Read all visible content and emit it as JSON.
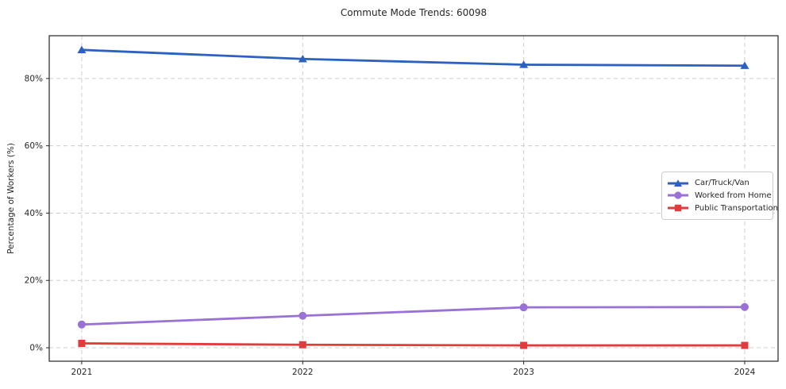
{
  "chart_data": {
    "type": "line",
    "title": "Commute Mode Trends: 60098",
    "xlabel": "",
    "ylabel": "Percentage of Workers (%)",
    "x": [
      2021,
      2022,
      2023,
      2024
    ],
    "x_tick_labels": [
      "2021",
      "2022",
      "2023",
      "2024"
    ],
    "y_ticks": [
      0,
      20,
      40,
      60,
      80
    ],
    "y_tick_labels": [
      "0%",
      "20%",
      "40%",
      "60%",
      "80%"
    ],
    "xlim_index": [
      -0.147,
      3.151
    ],
    "ylim": [
      -4,
      92.7
    ],
    "grid": true,
    "grid_style": "dashed",
    "legend_position": "center right",
    "series": [
      {
        "name": "Car/Truck/Van",
        "color": "#2d61c1",
        "marker": "triangle",
        "values": [
          88.5,
          85.8,
          84.1,
          83.8
        ]
      },
      {
        "name": "Worked from Home",
        "color": "#9a71d4",
        "marker": "circle",
        "values": [
          6.9,
          9.5,
          12.0,
          12.1
        ]
      },
      {
        "name": "Public Transportation",
        "color": "#e23b3b",
        "marker": "square",
        "values": [
          1.3,
          0.9,
          0.7,
          0.7
        ]
      }
    ]
  },
  "style": {
    "grid_color": "#cccccc",
    "spine_color": "#262626",
    "tick_color": "#262626",
    "text_color": "#262626"
  }
}
